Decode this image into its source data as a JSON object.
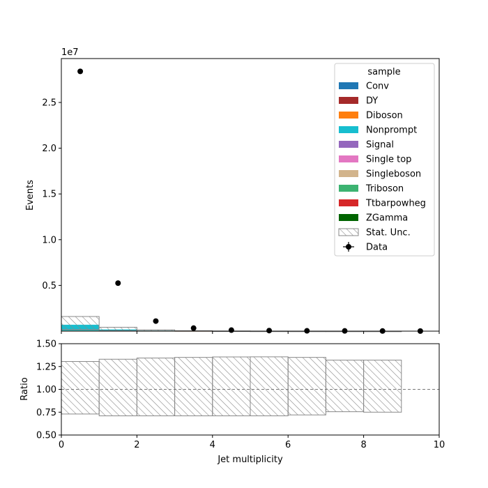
{
  "chart_data": [
    {
      "type": "bar",
      "stacked": true,
      "xlabel": "",
      "ylabel": "Events",
      "offset_text": "1e7",
      "xlim": [
        0,
        10
      ],
      "ylim": [
        0,
        29800000
      ],
      "y_ticks": [
        5000000,
        10000000,
        15000000,
        20000000,
        25000000
      ],
      "y_tick_labels": [
        "0.5",
        "1.0",
        "1.5",
        "2.0",
        "2.5"
      ],
      "x_ticks": [
        0,
        2,
        4,
        6,
        8,
        10
      ],
      "bin_edges": [
        0,
        1,
        2,
        3,
        4,
        5,
        6,
        7,
        8,
        9,
        10
      ],
      "series": [
        {
          "name": "Conv",
          "color": "#1f77b4",
          "values": [
            0,
            0,
            0,
            0,
            0,
            0,
            0,
            0,
            0,
            0
          ]
        },
        {
          "name": "DY",
          "color": "#a52a2a",
          "values": [
            0,
            0,
            0,
            0,
            0,
            0,
            0,
            0,
            0,
            0
          ]
        },
        {
          "name": "Diboson",
          "color": "#ff7f0e",
          "values": [
            60000,
            15000,
            5000,
            2000,
            800,
            300,
            100,
            50,
            20,
            0
          ]
        },
        {
          "name": "Nonprompt",
          "color": "#17becf",
          "values": [
            640000,
            170000,
            55000,
            20000,
            7000,
            2500,
            800,
            300,
            100,
            0
          ]
        },
        {
          "name": "Signal",
          "color": "#9467bd",
          "values": [
            0,
            0,
            0,
            0,
            0,
            0,
            0,
            0,
            0,
            0
          ]
        },
        {
          "name": "Single top",
          "color": "#e377c2",
          "values": [
            0,
            0,
            0,
            0,
            0,
            0,
            0,
            0,
            0,
            0
          ]
        },
        {
          "name": "Singleboson",
          "color": "#d2b48c",
          "values": [
            0,
            0,
            0,
            0,
            0,
            0,
            0,
            0,
            0,
            0
          ]
        },
        {
          "name": "Triboson",
          "color": "#3cb371",
          "values": [
            0,
            0,
            0,
            0,
            0,
            0,
            0,
            0,
            0,
            0
          ]
        },
        {
          "name": "Ttbarpowheg",
          "color": "#d62728",
          "values": [
            0,
            0,
            0,
            0,
            0,
            0,
            0,
            0,
            0,
            0
          ]
        },
        {
          "name": "ZGamma",
          "color": "#006400",
          "values": [
            0,
            0,
            0,
            0,
            0,
            0,
            0,
            0,
            0,
            0
          ]
        }
      ],
      "uncertainty": {
        "name": "Stat. Unc.",
        "up": [
          900000,
          240000,
          80000,
          30000,
          10000,
          3500,
          1100,
          400,
          140,
          0
        ],
        "down": [
          510000,
          130000,
          43000,
          15500,
          5400,
          1900,
          600,
          220,
          75,
          0
        ]
      },
      "data": {
        "name": "Data",
        "x": [
          0.5,
          1.5,
          2.5,
          3.5,
          4.5,
          5.5,
          6.5,
          7.5,
          8.5,
          9.5
        ],
        "y": [
          28400000,
          5250000,
          1100000,
          330000,
          110000,
          60000,
          35000,
          25000,
          15000,
          10000
        ]
      },
      "legend": {
        "title": "sample",
        "placement": "top-right"
      }
    },
    {
      "type": "area",
      "xlabel": "Jet multiplicity",
      "ylabel": "Ratio",
      "xlim": [
        0,
        10
      ],
      "ylim": [
        0.5,
        1.5
      ],
      "x_ticks": [
        0,
        2,
        4,
        6,
        8,
        10
      ],
      "x_tick_labels": [
        "0",
        "2",
        "4",
        "6",
        "8",
        "10"
      ],
      "y_ticks": [
        0.5,
        0.75,
        1.0,
        1.25,
        1.5
      ],
      "y_tick_labels": [
        "0.50",
        "0.75",
        "1.00",
        "1.25",
        "1.50"
      ],
      "reference_line": 1.0,
      "bin_edges": [
        0,
        1,
        2,
        3,
        4,
        5,
        6,
        7,
        8,
        9
      ],
      "band_up": [
        1.305,
        1.33,
        1.343,
        1.35,
        1.355,
        1.356,
        1.35,
        1.32,
        1.32
      ],
      "band_down": [
        0.73,
        0.71,
        0.71,
        0.71,
        0.71,
        0.71,
        0.72,
        0.755,
        0.75
      ]
    }
  ]
}
